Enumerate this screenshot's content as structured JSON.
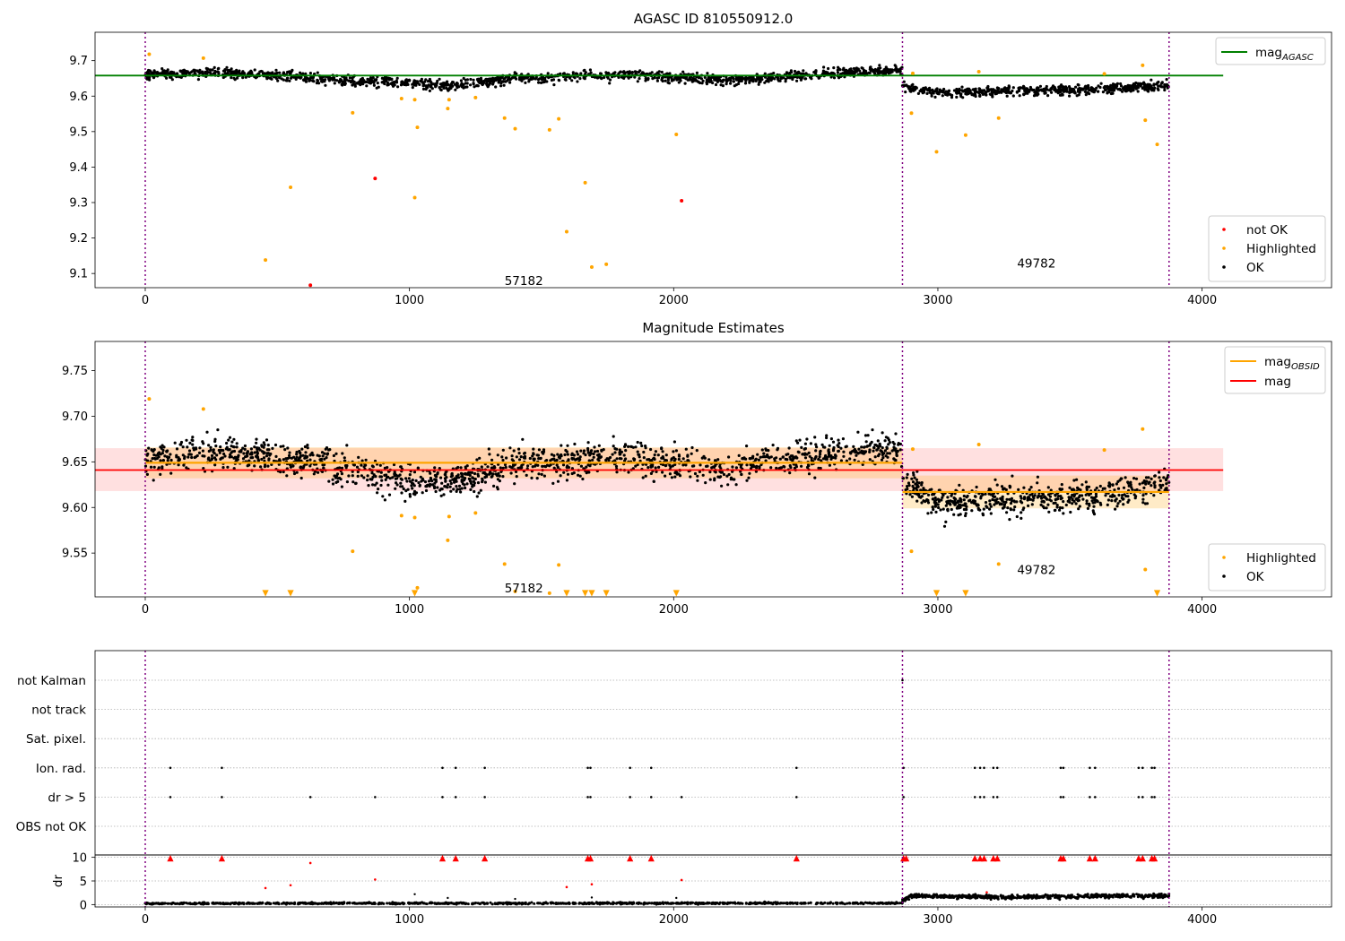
{
  "figure": {
    "colors": {
      "ok": "#000000",
      "highlighted": "#ffa500",
      "not_ok": "#ff0000",
      "agasc_line": "#008000",
      "obs_line": "#ffa500",
      "mag_line": "#ff0000",
      "vline": "#800080"
    }
  },
  "chart_data": [
    {
      "type": "scatter",
      "title": "AGASC ID 810550912.0",
      "xlim": [
        -190,
        4490
      ],
      "ylim": [
        9.06,
        9.78
      ],
      "xticks": [
        0,
        1000,
        2000,
        3000,
        4000
      ],
      "yticks": [
        9.1,
        9.2,
        9.3,
        9.4,
        9.5,
        9.6,
        9.7
      ],
      "vlines": [
        0,
        2866,
        3875
      ],
      "annotations": [
        {
          "text": "57182",
          "x": 1360,
          "y": 9.08
        },
        {
          "text": "49782",
          "x": 3300,
          "y": 9.13
        }
      ],
      "hline": {
        "name": "mag_AGASC",
        "label": "mag",
        "subscript": "AGASC",
        "y": 9.658,
        "x": [
          -190,
          4080
        ]
      },
      "legend_lines": [
        {
          "label": "mag",
          "subscript": "AGASC",
          "color": "#008000"
        }
      ],
      "legend_markers": [
        {
          "label": "not OK",
          "color": "#ff0000"
        },
        {
          "label": "Highlighted",
          "color": "#ffa500"
        },
        {
          "label": "OK",
          "color": "#000000"
        }
      ],
      "legend_placement": [
        "top-right",
        "bottom-right"
      ],
      "ok_segments": [
        {
          "x": [
            0,
            2866
          ],
          "levels": [
            [
              0,
              9.66
            ],
            [
              300,
              9.668
            ],
            [
              700,
              9.648
            ],
            [
              1150,
              9.63
            ],
            [
              1400,
              9.65
            ],
            [
              1800,
              9.66
            ],
            [
              2200,
              9.645
            ],
            [
              2500,
              9.66
            ],
            [
              2866,
              9.675
            ]
          ],
          "noise": 0.012,
          "n": 1500
        },
        {
          "x": [
            2866,
            3875
          ],
          "levels": [
            [
              2866,
              9.63
            ],
            [
              3000,
              9.61
            ],
            [
              3300,
              9.615
            ],
            [
              3600,
              9.618
            ],
            [
              3875,
              9.632
            ]
          ],
          "noise": 0.011,
          "n": 560
        }
      ],
      "highlighted": [
        {
          "x": 15,
          "y": 9.718
        },
        {
          "x": 220,
          "y": 9.707
        },
        {
          "x": 455,
          "y": 9.138
        },
        {
          "x": 550,
          "y": 9.343
        },
        {
          "x": 785,
          "y": 9.553
        },
        {
          "x": 970,
          "y": 9.593
        },
        {
          "x": 1020,
          "y": 9.314
        },
        {
          "x": 1020,
          "y": 9.59
        },
        {
          "x": 1030,
          "y": 9.512
        },
        {
          "x": 1145,
          "y": 9.565
        },
        {
          "x": 1150,
          "y": 9.59
        },
        {
          "x": 1250,
          "y": 9.596
        },
        {
          "x": 1360,
          "y": 9.538
        },
        {
          "x": 1400,
          "y": 9.508
        },
        {
          "x": 1530,
          "y": 9.505
        },
        {
          "x": 1565,
          "y": 9.536
        },
        {
          "x": 1595,
          "y": 9.218
        },
        {
          "x": 1665,
          "y": 9.356
        },
        {
          "x": 1690,
          "y": 9.118
        },
        {
          "x": 1745,
          "y": 9.126
        },
        {
          "x": 2010,
          "y": 9.492
        },
        {
          "x": 2900,
          "y": 9.552
        },
        {
          "x": 2905,
          "y": 9.664
        },
        {
          "x": 2995,
          "y": 9.443
        },
        {
          "x": 3105,
          "y": 9.49
        },
        {
          "x": 3155,
          "y": 9.669
        },
        {
          "x": 3230,
          "y": 9.538
        },
        {
          "x": 3630,
          "y": 9.663
        },
        {
          "x": 3775,
          "y": 9.687
        },
        {
          "x": 3785,
          "y": 9.532
        },
        {
          "x": 3830,
          "y": 9.464
        }
      ],
      "not_ok": [
        {
          "x": 625,
          "y": 9.067
        },
        {
          "x": 870,
          "y": 9.368
        },
        {
          "x": 2030,
          "y": 9.305
        }
      ]
    },
    {
      "type": "scatter",
      "title": "Magnitude Estimates",
      "xlim": [
        -190,
        4490
      ],
      "ylim": [
        9.502,
        9.782
      ],
      "xticks": [
        0,
        1000,
        2000,
        3000,
        4000
      ],
      "yticks": [
        9.55,
        9.6,
        9.65,
        9.7,
        9.75
      ],
      "vlines": [
        0,
        2866,
        3875
      ],
      "annotations": [
        {
          "text": "57182",
          "x": 1360,
          "y": 9.512
        },
        {
          "text": "49782",
          "x": 3300,
          "y": 9.532
        }
      ],
      "mag_obsid": [
        {
          "y": 9.649,
          "band": [
            9.632,
            9.666
          ],
          "x": [
            0,
            2866
          ]
        },
        {
          "y": 9.617,
          "band": [
            9.599,
            9.635
          ],
          "x": [
            2866,
            3875
          ]
        }
      ],
      "mag": {
        "y": 9.641,
        "band": [
          9.618,
          9.665
        ],
        "x": [
          -190,
          4080
        ]
      },
      "legend_lines": [
        {
          "label": "mag",
          "subscript": "OBSID",
          "color": "#ffa500"
        },
        {
          "label": "mag",
          "subscript": "",
          "color": "#ff0000"
        }
      ],
      "legend_markers": [
        {
          "label": "Highlighted",
          "color": "#ffa500"
        },
        {
          "label": "OK",
          "color": "#000000"
        }
      ],
      "legend_placement": [
        "top-right",
        "bottom-right"
      ],
      "ok_segments": [
        {
          "x": [
            0,
            2866
          ],
          "levels": [
            [
              0,
              9.655
            ],
            [
              300,
              9.66
            ],
            [
              700,
              9.648
            ],
            [
              900,
              9.632
            ],
            [
              1150,
              9.628
            ],
            [
              1400,
              9.646
            ],
            [
              1800,
              9.656
            ],
            [
              2200,
              9.643
            ],
            [
              2500,
              9.658
            ],
            [
              2866,
              9.665
            ]
          ],
          "noise": 0.015,
          "n": 1500
        },
        {
          "x": [
            2866,
            3875
          ],
          "levels": [
            [
              2866,
              9.628
            ],
            [
              3000,
              9.605
            ],
            [
              3300,
              9.61
            ],
            [
              3600,
              9.612
            ],
            [
              3875,
              9.628
            ]
          ],
          "noise": 0.014,
          "n": 560
        }
      ],
      "highlighted": [
        {
          "x": 15,
          "y": 9.719
        },
        {
          "x": 220,
          "y": 9.708
        },
        {
          "x": 785,
          "y": 9.552
        },
        {
          "x": 970,
          "y": 9.591
        },
        {
          "x": 1020,
          "y": 9.589
        },
        {
          "x": 1030,
          "y": 9.512
        },
        {
          "x": 1145,
          "y": 9.564
        },
        {
          "x": 1150,
          "y": 9.59
        },
        {
          "x": 1250,
          "y": 9.594
        },
        {
          "x": 1360,
          "y": 9.538
        },
        {
          "x": 1400,
          "y": 9.508
        },
        {
          "x": 1530,
          "y": 9.506
        },
        {
          "x": 1565,
          "y": 9.537
        },
        {
          "x": 2900,
          "y": 9.552
        },
        {
          "x": 2905,
          "y": 9.664
        },
        {
          "x": 3155,
          "y": 9.669
        },
        {
          "x": 3230,
          "y": 9.538
        },
        {
          "x": 3630,
          "y": 9.663
        },
        {
          "x": 3775,
          "y": 9.686
        },
        {
          "x": 3785,
          "y": 9.532
        }
      ],
      "below_range_x": [
        455,
        550,
        1020,
        1595,
        1665,
        1690,
        1745,
        2010,
        2995,
        3105,
        3830
      ]
    },
    {
      "type": "scatter",
      "title": "",
      "xlim": [
        -190,
        4490
      ],
      "xticks": [
        0,
        1000,
        2000,
        3000,
        4000
      ],
      "vlines": [
        0,
        2866,
        3875
      ],
      "flag_rows": [
        "not Kalman",
        "not track",
        "Sat. pixel.",
        "Ion. rad.",
        "dr > 5",
        "OBS not OK"
      ],
      "flags": {
        "Ion. rad.": [
          95,
          290,
          1125,
          1175,
          1285,
          1675,
          1685,
          1835,
          1915,
          2465,
          2870,
          3140,
          3160,
          3175,
          3210,
          3225,
          3465,
          3475,
          3575,
          3595,
          3760,
          3775,
          3810,
          3820
        ],
        "dr > 5": [
          95,
          290,
          625,
          870,
          1125,
          1175,
          1285,
          1675,
          1685,
          1835,
          1915,
          2030,
          2465,
          2870,
          3140,
          3160,
          3175,
          3210,
          3225,
          3465,
          3475,
          3575,
          3595,
          3760,
          3775,
          3810,
          3820
        ],
        "not Kalman": [
          2866
        ]
      },
      "dr": {
        "ylabel": "dr",
        "ylim": [
          -0.5,
          10.5
        ],
        "yticks": [
          0,
          5,
          10
        ],
        "ok_segments": [
          {
            "x": [
              0,
              2866
            ],
            "levels": [
              [
                0,
                0.25
              ],
              [
                2866,
                0.3
              ]
            ],
            "noise": 0.15,
            "n": 1000
          },
          {
            "x": [
              2866,
              3875
            ],
            "levels": [
              [
                2866,
                0.9
              ],
              [
                2900,
                1.8
              ],
              [
                3300,
                1.6
              ],
              [
                3600,
                1.8
              ],
              [
                3875,
                1.9
              ]
            ],
            "noise": 0.35,
            "n": 600
          }
        ],
        "highlighted": [
          {
            "x": 1020,
            "y": 2.2
          },
          {
            "x": 1145,
            "y": 1.4
          },
          {
            "x": 1400,
            "y": 1.2
          },
          {
            "x": 1690,
            "y": 1.5
          },
          {
            "x": 2010,
            "y": 1.4
          },
          {
            "x": 3785,
            "y": 2.0
          }
        ],
        "not_ok": [
          {
            "x": 455,
            "y": 3.5
          },
          {
            "x": 550,
            "y": 4.1
          },
          {
            "x": 625,
            "y": 8.8
          },
          {
            "x": 870,
            "y": 5.3
          },
          {
            "x": 1595,
            "y": 3.7
          },
          {
            "x": 1690,
            "y": 4.3
          },
          {
            "x": 2030,
            "y": 5.2
          },
          {
            "x": 3185,
            "y": 2.6
          }
        ],
        "above_range_x": [
          95,
          290,
          1125,
          1175,
          1285,
          1675,
          1685,
          1835,
          1915,
          2465,
          2870,
          2880,
          3140,
          3160,
          3175,
          3210,
          3225,
          3465,
          3475,
          3575,
          3595,
          3760,
          3775,
          3810,
          3820
        ]
      }
    }
  ]
}
